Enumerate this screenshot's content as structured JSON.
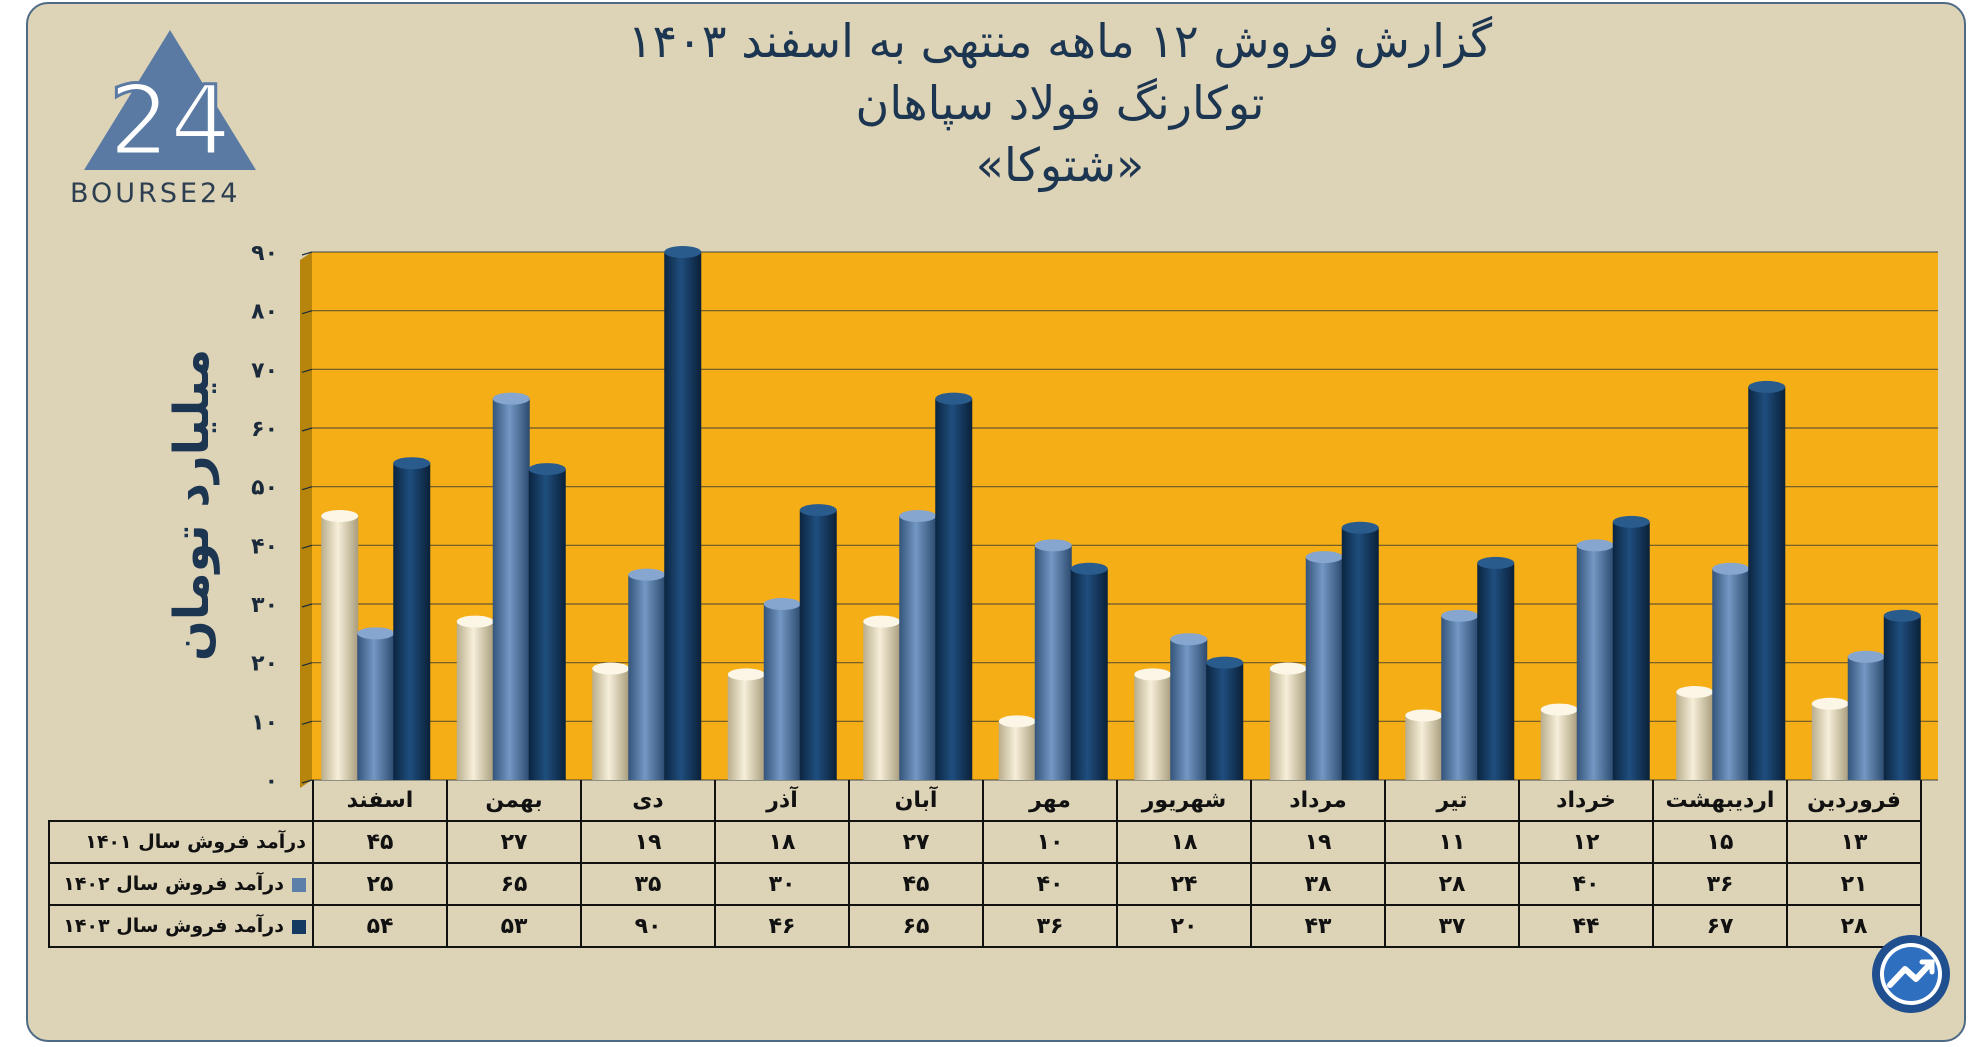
{
  "titles": {
    "line1": "گزارش  فروش ۱۲ ماهه منتهی به اسفند ۱۴۰۳",
    "line2": "توکارنگ فولاد سپاهان",
    "line3": "«شتوکا»"
  },
  "logo": {
    "mark": "24",
    "text": "BOURSE24"
  },
  "colors": {
    "plot_bg": "#f6ae17",
    "card_bg": "#ddd4b8",
    "series_1401": "#e9e0c4",
    "series_1402": "#5b7fa9",
    "series_1403": "#143a61"
  },
  "chart_data": {
    "type": "bar",
    "ylabel": "میلیارد تومان",
    "ylim": [
      0,
      90
    ],
    "yticks": [
      "۰",
      "۱۰",
      "۲۰",
      "۳۰",
      "۴۰",
      "۵۰",
      "۶۰",
      "۷۰",
      "۸۰",
      "۹۰"
    ],
    "grid": true,
    "categories": [
      "فروردین",
      "اردیبهشت",
      "خرداد",
      "تیر",
      "مرداد",
      "شهریور",
      "مهر",
      "آبان",
      "آذر",
      "دی",
      "بهمن",
      "اسفند"
    ],
    "series": [
      {
        "name": "درآمد فروش سال ۱۴۰۱",
        "values": [
          13,
          15,
          12,
          11,
          19,
          18,
          10,
          27,
          18,
          19,
          27,
          45
        ],
        "labels": [
          "۱۳",
          "۱۵",
          "۱۲",
          "۱۱",
          "۱۹",
          "۱۸",
          "۱۰",
          "۲۷",
          "۱۸",
          "۱۹",
          "۲۷",
          "۴۵"
        ]
      },
      {
        "name": "درآمد فروش سال ۱۴۰۲",
        "values": [
          21,
          36,
          40,
          28,
          38,
          24,
          40,
          45,
          30,
          35,
          65,
          25
        ],
        "labels": [
          "۲۱",
          "۳۶",
          "۴۰",
          "۲۸",
          "۳۸",
          "۲۴",
          "۴۰",
          "۴۵",
          "۳۰",
          "۳۵",
          "۶۵",
          "۲۵"
        ]
      },
      {
        "name": "درآمد فروش سال ۱۴۰۳",
        "values": [
          28,
          67,
          44,
          37,
          43,
          20,
          36,
          65,
          46,
          90,
          53,
          54
        ],
        "labels": [
          "۲۸",
          "۶۷",
          "۴۴",
          "۳۷",
          "۴۳",
          "۲۰",
          "۳۶",
          "۶۵",
          "۴۶",
          "۹۰",
          "۵۳",
          "۵۴"
        ]
      }
    ]
  },
  "badge": {
    "icon": "trend-arrow-icon"
  }
}
